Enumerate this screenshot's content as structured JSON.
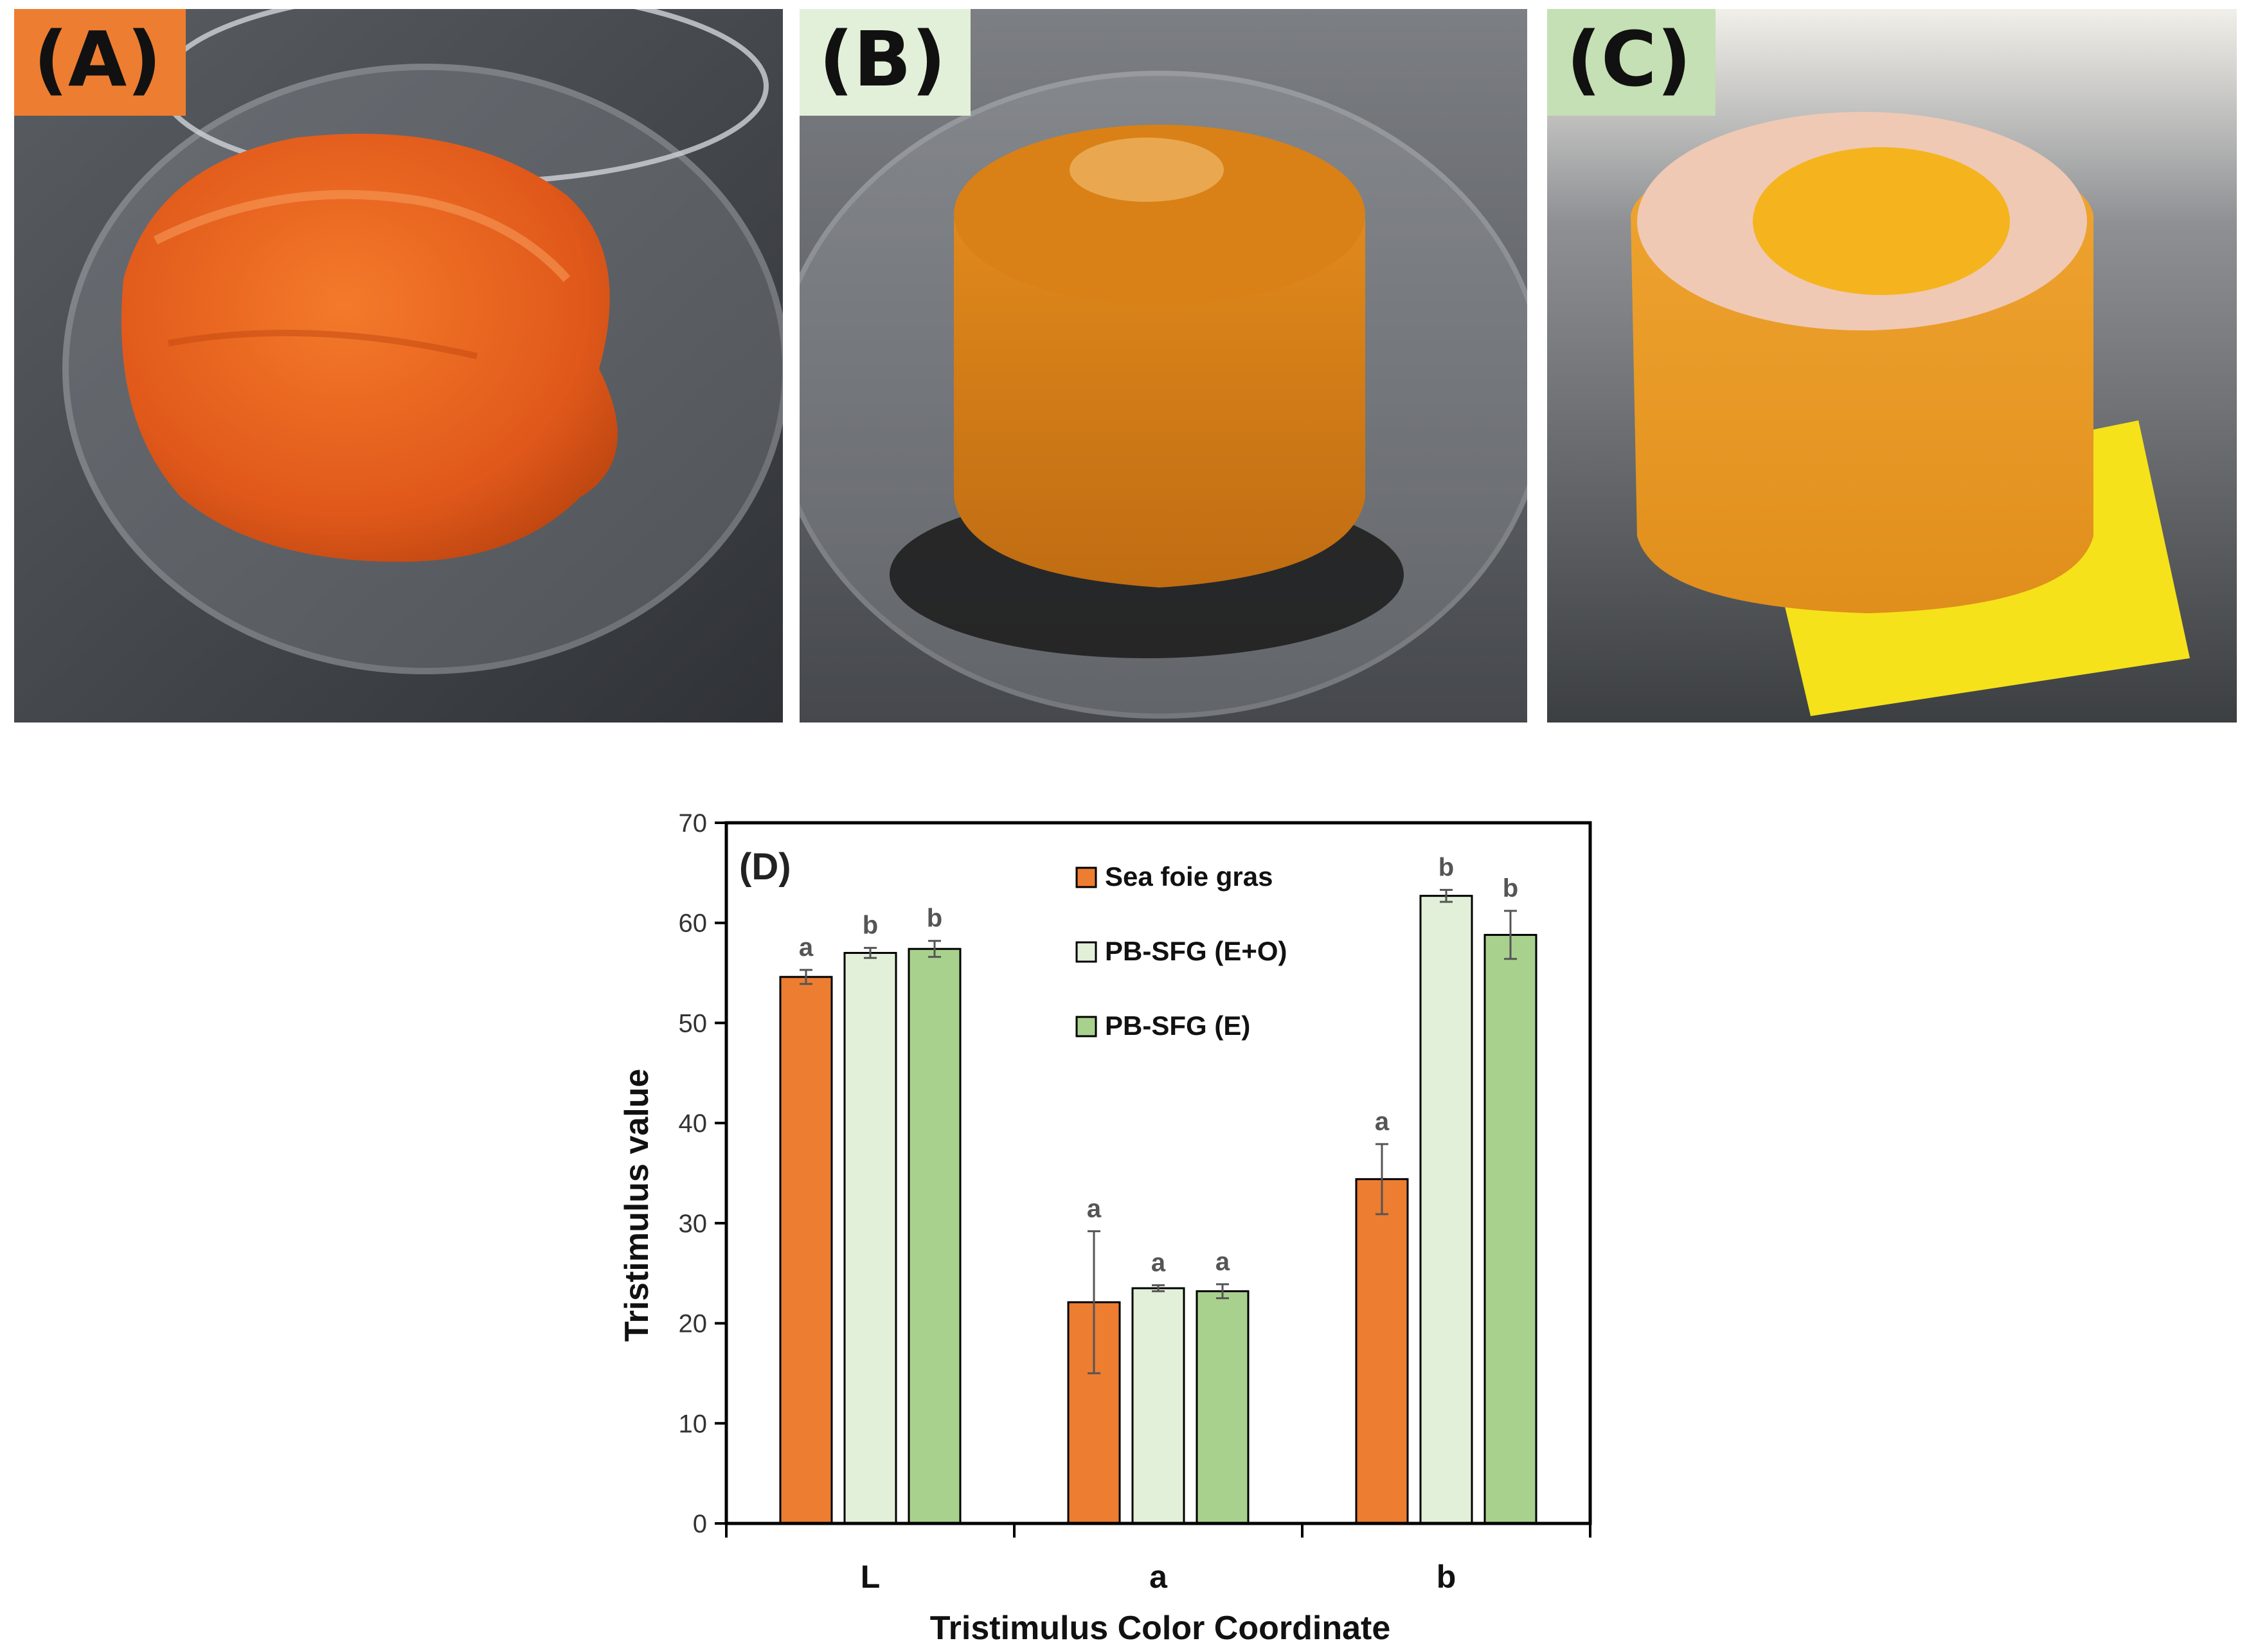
{
  "panels": [
    {
      "label": "(A)",
      "label_bg": "#ED7D31",
      "subject": "sea foie gras in petri dish"
    },
    {
      "label": "(B)",
      "label_bg": "#E2F0D9",
      "subject": "PB-SFG (E+O) in petri dish"
    },
    {
      "label": "(C)",
      "label_bg": "#C5E0B4",
      "subject": "PB-SFG (E) on yellow paper"
    }
  ],
  "chart_data": {
    "type": "bar",
    "panel_label": "(D)",
    "categories": [
      "L",
      "a",
      "b"
    ],
    "series": [
      {
        "name": "Sea foie gras",
        "color": "#ED7D31",
        "values": [
          54.6,
          22.1,
          34.4
        ],
        "errors": [
          0.7,
          7.1,
          3.5
        ],
        "letters": [
          "a",
          "a",
          "a"
        ]
      },
      {
        "name": "PB-SFG (E+O)",
        "color": "#E2F0D9",
        "values": [
          57.0,
          23.5,
          62.7
        ],
        "errors": [
          0.5,
          0.3,
          0.6
        ],
        "letters": [
          "b",
          "a",
          "b"
        ]
      },
      {
        "name": "PB-SFG (E)",
        "color": "#A9D18E",
        "values": [
          57.4,
          23.2,
          58.8
        ],
        "errors": [
          0.8,
          0.7,
          2.4
        ],
        "letters": [
          "b",
          "a",
          "b"
        ]
      }
    ],
    "ylim": [
      0,
      70
    ],
    "yticks": [
      0,
      10,
      20,
      30,
      40,
      50,
      60,
      70
    ],
    "xlabel": "Tristimulus Color Coordinate",
    "ylabel": "Tristimulus value",
    "legend_position": "top-center"
  }
}
